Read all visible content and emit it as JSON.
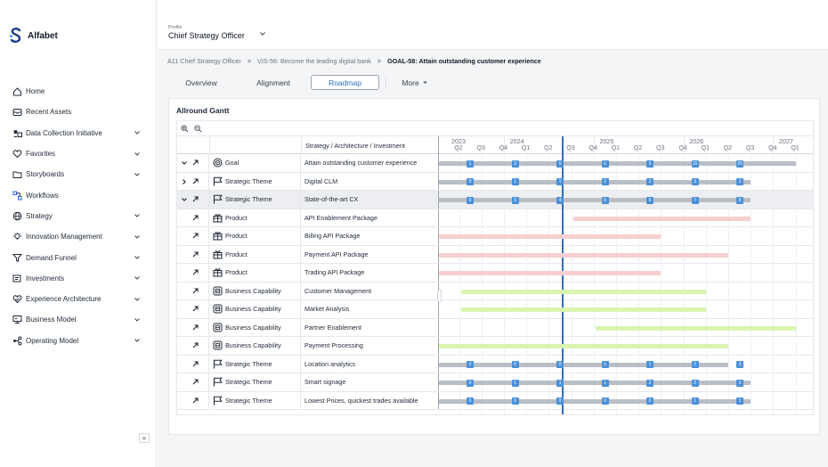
{
  "app": {
    "name": "Alfabet"
  },
  "colors": {
    "accent": "#2f6fc1",
    "marker": "#4a90d9",
    "gray_bar": "#b9bec6",
    "pink_bar": "#f8cfcf",
    "green_bar": "#d9f5b0"
  },
  "header": {
    "profile_caption": "Profile",
    "profile_value": "Chief Strategy Officer"
  },
  "sidebar": {
    "items": [
      {
        "label": "Home",
        "icon": "home-icon",
        "chevron": false
      },
      {
        "label": "Recent Assets",
        "icon": "inbox-icon",
        "chevron": false
      },
      {
        "label": "Data Collection Initiative",
        "icon": "data-collection-icon",
        "chevron": true
      },
      {
        "label": "Favorites",
        "icon": "heart-icon",
        "chevron": true
      },
      {
        "label": "Storyboards",
        "icon": "folder-icon",
        "chevron": true
      },
      {
        "label": "Workflows",
        "icon": "workflow-icon",
        "chevron": false
      },
      {
        "label": "Strategy",
        "icon": "globe-icon",
        "chevron": true
      },
      {
        "label": "Innovation Management",
        "icon": "lightbulb-icon",
        "chevron": true
      },
      {
        "label": "Demand Funnel",
        "icon": "funnel-icon",
        "chevron": true
      },
      {
        "label": "Investments",
        "icon": "investment-icon",
        "chevron": true
      },
      {
        "label": "Experience Architecture",
        "icon": "experience-icon",
        "chevron": true
      },
      {
        "label": "Business Model",
        "icon": "business-model-icon",
        "chevron": true
      },
      {
        "label": "Operating Model",
        "icon": "operating-model-icon",
        "chevron": true
      }
    ],
    "collapse_label": "«"
  },
  "breadcrumb": {
    "items": [
      "A11 Chief Strategy Officer",
      "VIS-56: Become the leading digital bank"
    ],
    "current": "GOAL-58: Attain outstanding customer experience",
    "separator": ">"
  },
  "tabs": [
    {
      "label": "Overview",
      "active": false
    },
    {
      "label": "Alignment",
      "active": false
    },
    {
      "label": "Roadmap",
      "active": true
    },
    {
      "label": "More",
      "active": false
    }
  ],
  "panel": {
    "title": "Allround Gantt",
    "column_header": "Strategy / Architecture / Investment"
  },
  "timeline": {
    "years": [
      "2023",
      "2024",
      "2025",
      "2026",
      "2027"
    ],
    "quarters": [
      "Q2",
      "Q3",
      "Q4",
      "Q1",
      "Q2",
      "Q3",
      "Q4",
      "Q1",
      "Q2",
      "Q3",
      "Q4",
      "Q1",
      "Q2",
      "Q3",
      "Q4",
      "Q1"
    ],
    "start": "2023 Q2",
    "today": "2024 Q3"
  },
  "rows": [
    {
      "type": "Goal",
      "icon": "target-icon",
      "name": "Attain outstanding customer experience",
      "expander": "collapse",
      "bar": {
        "color": "gray",
        "from": "2023 Q2",
        "to": "2027 Q1"
      },
      "markers": [
        "1",
        "3",
        "5",
        "6",
        "9",
        "15",
        "20"
      ],
      "highlight": false
    },
    {
      "type": "Strategic Theme",
      "icon": "flag-icon",
      "name": "Digital CLM",
      "expander": "expand",
      "bar": {
        "color": "gray",
        "from": "2023 Q2",
        "to": "2026 Q3"
      },
      "markers": [
        "0",
        "1",
        "1",
        "2",
        "2",
        "3",
        "3"
      ],
      "highlight": false
    },
    {
      "type": "Strategic Theme",
      "icon": "flag-icon",
      "name": "State-of-the-art CX",
      "expander": "collapse",
      "bar": {
        "color": "gray",
        "from": "2023 Q2",
        "to": "2026 Q3"
      },
      "markers": [
        "0",
        "3",
        "4",
        "5",
        "6",
        "7",
        "8"
      ],
      "highlight": true
    },
    {
      "type": "Product",
      "icon": "product-icon",
      "name": "API Enablement Package",
      "expander": "",
      "bar": {
        "color": "pink",
        "from": "2024 Q4",
        "to": "2026 Q3"
      },
      "markers": [],
      "highlight": false
    },
    {
      "type": "Product",
      "icon": "product-icon",
      "name": "Billing API Package",
      "expander": "",
      "bar": {
        "color": "pink",
        "from": "2023 Q2",
        "to": "2025 Q3"
      },
      "markers": [],
      "highlight": false
    },
    {
      "type": "Product",
      "icon": "product-icon",
      "name": "Payment API Package",
      "expander": "",
      "bar": {
        "color": "pink",
        "from": "2023 Q2",
        "to": "2026 Q2"
      },
      "markers": [],
      "highlight": false
    },
    {
      "type": "Product",
      "icon": "product-icon",
      "name": "Trading API Package",
      "expander": "",
      "bar": {
        "color": "pink",
        "from": "2023 Q2",
        "to": "2025 Q3"
      },
      "markers": [],
      "highlight": false
    },
    {
      "type": "Business Capability",
      "icon": "capability-icon",
      "name": "Customer Management",
      "expander": "",
      "bar": {
        "color": "green",
        "from": "2023 Q3",
        "to": "2026 Q1"
      },
      "markers": [],
      "highlight": false
    },
    {
      "type": "Business Capability",
      "icon": "capability-icon",
      "name": "Market Analysis",
      "expander": "",
      "bar": {
        "color": "green",
        "from": "2023 Q3",
        "to": "2026 Q1"
      },
      "markers": [],
      "highlight": false
    },
    {
      "type": "Business Capability",
      "icon": "capability-icon",
      "name": "Partner Enablement",
      "expander": "",
      "bar": {
        "color": "green",
        "from": "2025 Q1",
        "to": "2027 Q1"
      },
      "markers": [],
      "highlight": false
    },
    {
      "type": "Business Capability",
      "icon": "capability-icon",
      "name": "Payment Processing",
      "expander": "",
      "bar": {
        "color": "green",
        "from": "2023 Q2",
        "to": "2026 Q2"
      },
      "markers": [],
      "highlight": false
    },
    {
      "type": "Strategic Theme",
      "icon": "flag-icon",
      "name": "Location analytics",
      "expander": "",
      "bar": {
        "color": "gray",
        "from": "2023 Q2",
        "to": "2026 Q2"
      },
      "markers": [
        "0",
        "0",
        "0",
        "1",
        "1",
        "2",
        "3"
      ],
      "highlight": false
    },
    {
      "type": "Strategic Theme",
      "icon": "flag-icon",
      "name": "Smart signage",
      "expander": "",
      "bar": {
        "color": "gray",
        "from": "2023 Q2",
        "to": "2026 Q3"
      },
      "markers": [
        "0",
        "1",
        "1",
        "1",
        "2",
        "2",
        "3"
      ],
      "highlight": false
    },
    {
      "type": "Strategic Theme",
      "icon": "flag-icon",
      "name": "Lowest Prices, quickest trades available",
      "expander": "",
      "bar": {
        "color": "gray",
        "from": "2023 Q2",
        "to": "2026 Q3"
      },
      "markers": [
        "0",
        "0",
        "0",
        "0",
        "0",
        "1",
        "1"
      ],
      "highlight": false
    }
  ]
}
